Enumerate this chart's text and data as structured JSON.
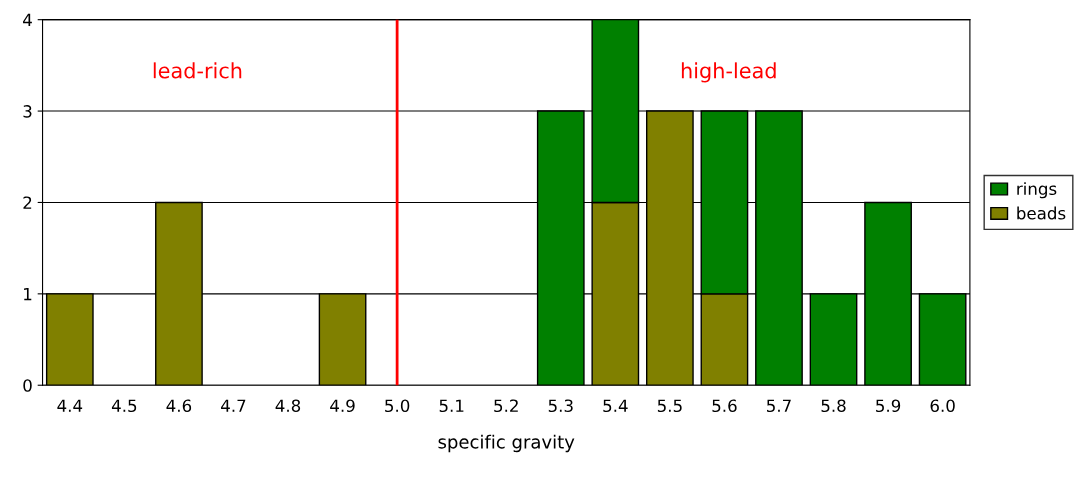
{
  "chart_data": {
    "type": "bar",
    "stacked": true,
    "xlabel": "specific gravity",
    "categories": [
      "4.4",
      "4.5",
      "4.6",
      "4.7",
      "4.8",
      "4.9",
      "5.0",
      "5.1",
      "5.2",
      "5.3",
      "5.4",
      "5.5",
      "5.6",
      "5.7",
      "5.8",
      "5.9",
      "6.0"
    ],
    "series": [
      {
        "name": "beads",
        "color": "#808000",
        "values": [
          1,
          null,
          2,
          null,
          null,
          1,
          null,
          null,
          null,
          null,
          2,
          3,
          1,
          null,
          null,
          null,
          null
        ]
      },
      {
        "name": "rings",
        "color": "#008000",
        "values": [
          null,
          null,
          null,
          null,
          null,
          null,
          null,
          null,
          null,
          3,
          2,
          null,
          2,
          3,
          1,
          2,
          1
        ]
      }
    ],
    "ylim": [
      0,
      4
    ],
    "yticks": [
      0,
      1,
      2,
      3,
      4
    ],
    "grid": "y",
    "legend": "right",
    "ref_lines": [
      {
        "axis": "x",
        "value": "5.0",
        "color": "#ff0000"
      }
    ],
    "annotations": [
      "lead-rich",
      "high-lead"
    ]
  }
}
